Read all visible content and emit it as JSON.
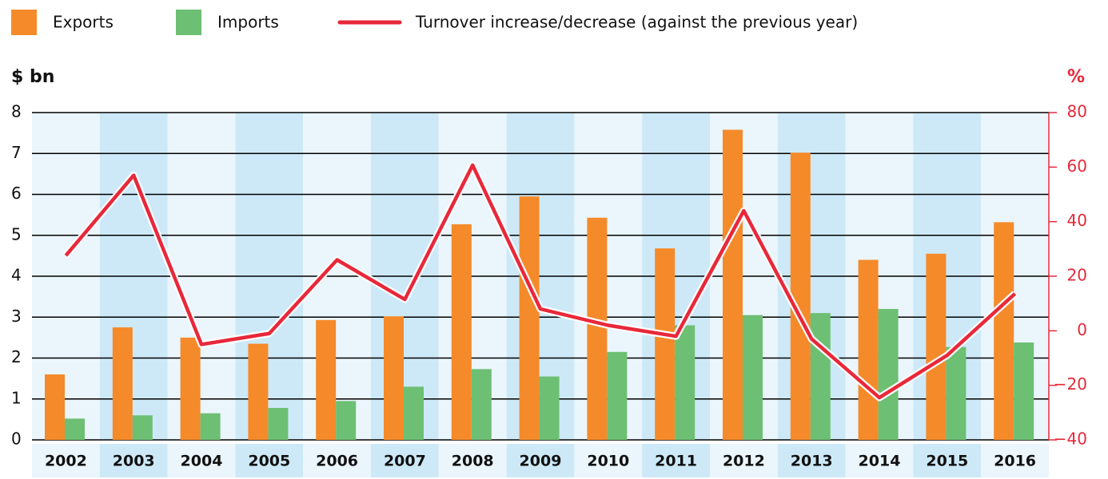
{
  "chart_data": {
    "type": "bar_line",
    "categories": [
      "2002",
      "2003",
      "2004",
      "2005",
      "2006",
      "2007",
      "2008",
      "2009",
      "2010",
      "2011",
      "2012",
      "2013",
      "2014",
      "2015",
      "2016"
    ],
    "series": [
      {
        "name": "Exports",
        "color": "#f58a2a",
        "values": [
          1.6,
          2.75,
          2.5,
          2.35,
          2.93,
          3.02,
          5.27,
          5.95,
          5.43,
          4.68,
          7.58,
          7.02,
          4.4,
          4.55,
          5.32
        ]
      },
      {
        "name": "Imports",
        "color": "#6dbf73",
        "values": [
          0.52,
          0.6,
          0.65,
          0.78,
          0.95,
          1.3,
          1.73,
          1.55,
          2.15,
          2.8,
          3.05,
          3.1,
          3.2,
          2.27,
          2.38
        ]
      },
      {
        "name": "Turnover increase/decrease (against the previous year)",
        "color": "#e8283a",
        "axis": "y2",
        "values": [
          27.6,
          57,
          -5,
          -1,
          26,
          11.5,
          60.7,
          8,
          2,
          -2,
          44,
          -3,
          -24.5,
          -9,
          13.6
        ]
      }
    ],
    "y_label": "$ bn",
    "y2_label": "%",
    "ylim": [
      0,
      8
    ],
    "yticks": [
      0,
      1,
      2,
      3,
      4,
      5,
      6,
      7,
      8
    ],
    "y2lim": [
      -40,
      80
    ],
    "y2ticks": [
      {
        "value": -40,
        "label": "−40"
      },
      {
        "value": -20,
        "label": "−20"
      },
      0,
      20,
      40,
      60,
      80
    ],
    "grid": true,
    "legend": "top"
  }
}
